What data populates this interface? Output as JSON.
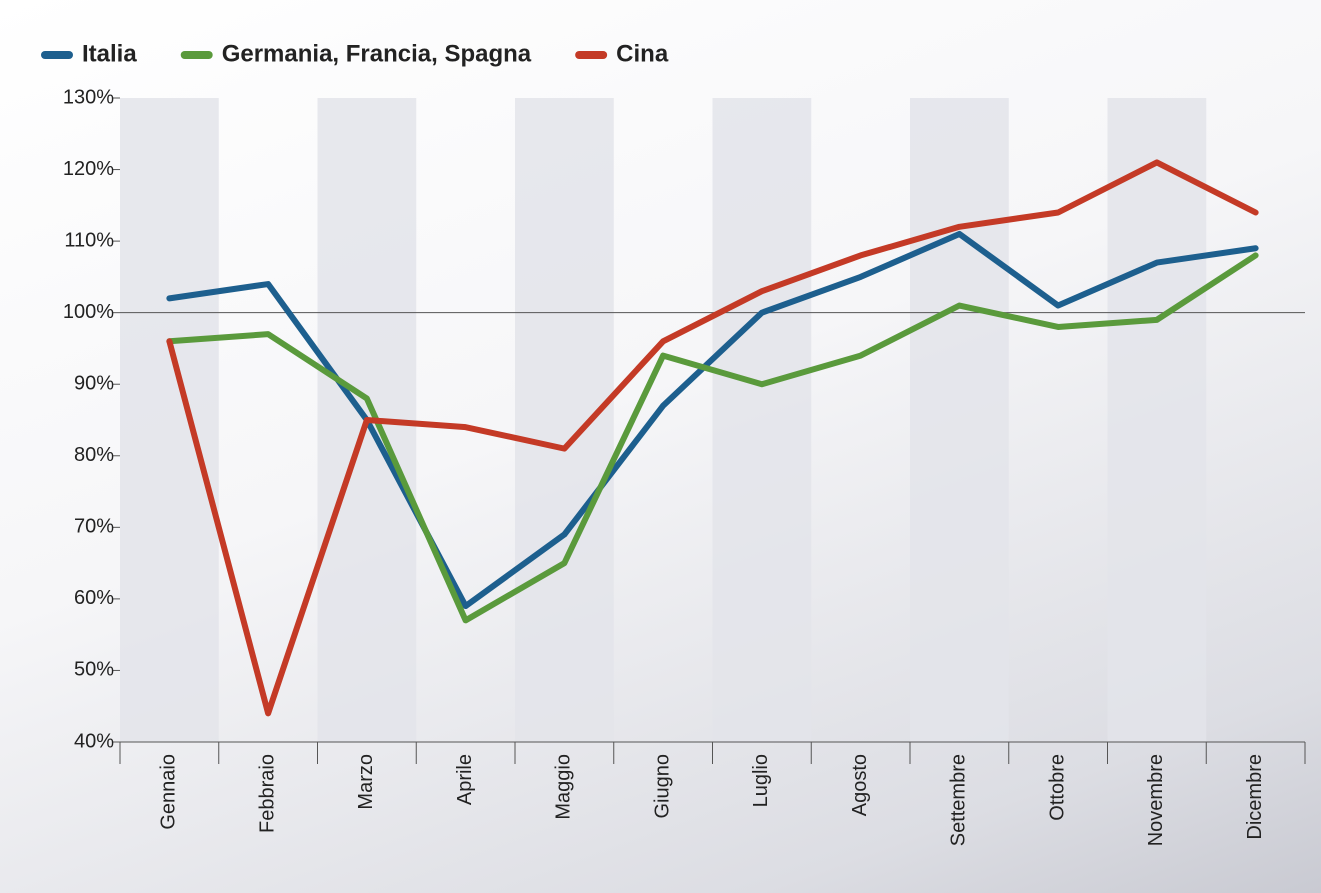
{
  "chart_data": {
    "type": "line",
    "categories": [
      "Gennaio",
      "Febbraio",
      "Marzo",
      "Aprile",
      "Maggio",
      "Giugno",
      "Luglio",
      "Agosto",
      "Settembre",
      "Ottobre",
      "Novembre",
      "Dicembre"
    ],
    "series": [
      {
        "name": "Italia",
        "color": "#1d5f8e",
        "values": [
          102,
          104,
          85,
          59,
          69,
          87,
          100,
          105,
          111,
          101,
          107,
          109
        ]
      },
      {
        "name": "Germania, Francia, Spagna",
        "color": "#5a9a3c",
        "values": [
          96,
          97,
          88,
          57,
          65,
          94,
          90,
          94,
          101,
          98,
          99,
          108
        ]
      },
      {
        "name": "Cina",
        "color": "#c43a26",
        "values": [
          96,
          44,
          85,
          84,
          81,
          96,
          103,
          108,
          112,
          114,
          121,
          114
        ]
      }
    ],
    "ylim": [
      40,
      130
    ],
    "yticks": [
      {
        "value": 40,
        "label": "40%"
      },
      {
        "value": 50,
        "label": "50%"
      },
      {
        "value": 60,
        "label": "60%"
      },
      {
        "value": 70,
        "label": "70%"
      },
      {
        "value": 80,
        "label": "80%"
      },
      {
        "value": 90,
        "label": "90%"
      },
      {
        "value": 100,
        "label": "100%"
      },
      {
        "value": 110,
        "label": "110%"
      },
      {
        "value": 120,
        "label": "120%"
      },
      {
        "value": 130,
        "label": "130%"
      }
    ],
    "reference_line": 100,
    "legend": "top-left"
  }
}
